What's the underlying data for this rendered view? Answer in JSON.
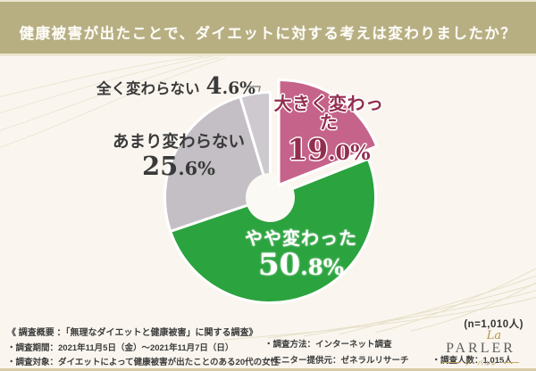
{
  "header": {
    "title": "健康被害が出たことで、ダイエットに対する考えは変わりましたか？"
  },
  "chart_data": {
    "type": "pie",
    "donut": true,
    "title": "健康被害が出たことで、ダイエットに対する考えは変わりましたか？",
    "sample_label": "(n=1,010人)",
    "start_angle_deg": 0,
    "direction": "clockwise",
    "segments": [
      {
        "label": "大きく変わった",
        "value": 19.0,
        "display": "19.0%",
        "color": "#c6638a",
        "exploded": true
      },
      {
        "label": "やや変わった",
        "value": 50.8,
        "display": "50.8%",
        "color": "#2ba33e",
        "exploded": false
      },
      {
        "label": "あまり変わらない",
        "value": 25.6,
        "display": "25.6%",
        "color": "#c3bfc4",
        "exploded": false
      },
      {
        "label": "全く変わらない",
        "value": 4.6,
        "display": "4.6%",
        "color": "#cdc9ce",
        "exploded": false
      }
    ]
  },
  "footer": {
    "overview": "《 調査概要 ：「無理なダイエットと健康被害」に関する調査》",
    "period": "・調査期間：2021年11月5日（金）～2021年11月7日（日）",
    "target": "・調査対象：ダイエットによって健康被害が出たことのある20代の女性",
    "method": "・調査方法：インターネット調査",
    "monitor": "・モニター提供元：ゼネラルリサーチ",
    "count": "・調査人数：1,015人"
  },
  "logo": {
    "script": "La",
    "name": "PARLER",
    "sub": "ラ・パルレ"
  },
  "colors": {
    "banner": "#b7ae82",
    "background": "#faf6ef",
    "accent_pink": "#c6638a",
    "accent_green": "#2ba33e",
    "gray": "#c3bfc4",
    "light_gray": "#cdc9ce",
    "pink_text": "#932e50",
    "gold": "#b3954f"
  }
}
